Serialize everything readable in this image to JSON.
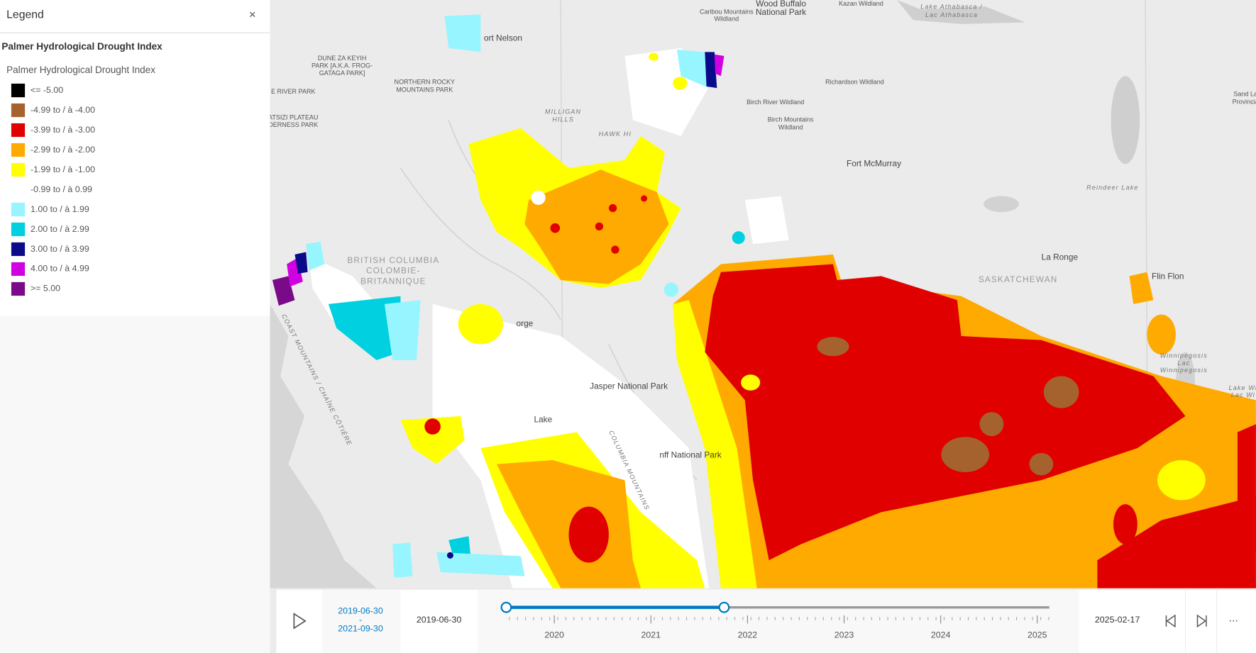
{
  "legend": {
    "header": "Legend",
    "close": "×",
    "layer_title": "Palmer Hydrological Drought Index",
    "sublayer_title": "Palmer Hydrological Drought Index",
    "items": [
      {
        "label": "<= -5.00",
        "color": "#000000"
      },
      {
        "label": "-4.99 to / à -4.00",
        "color": "#a5622f"
      },
      {
        "label": "-3.99 to / à -3.00",
        "color": "#e00000"
      },
      {
        "label": "-2.99 to / à -2.00",
        "color": "#ffaa00"
      },
      {
        "label": "-1.99 to / à -1.00",
        "color": "#ffff00"
      },
      {
        "label": "-0.99 to / à 0.99",
        "color": "#ffffff"
      },
      {
        "label": "1.00 to / à 1.99",
        "color": "#97f5ff"
      },
      {
        "label": "2.00 to / à 2.99",
        "color": "#00d0e0"
      },
      {
        "label": "3.00 to / à 3.99",
        "color": "#0a0a8a"
      },
      {
        "label": "4.00 to / à 4.99",
        "color": "#d000e0"
      },
      {
        "label": ">= 5.00",
        "color": "#7a0a8a"
      }
    ]
  },
  "map_labels": [
    {
      "lines": [
        "Caribou Mountains",
        "Wildland"
      ]
    },
    {
      "lines": [
        "Wood Buffalo",
        "National Park"
      ]
    },
    {
      "lines": [
        "Kazan Wildland"
      ]
    },
    {
      "lines": [
        "Lake Athabasca /",
        "Lac Athabasca"
      ]
    },
    {
      "lines": [
        "DUNE ZA KEYIH",
        "PARK [A.K.A. FROG-",
        "GATAGA PARK]"
      ]
    },
    {
      "lines": [
        "NORTHERN ROCKY",
        "MOUNTAINS PARK"
      ]
    },
    {
      "lines": [
        "E RIVER PARK"
      ]
    },
    {
      "lines": [
        "ATSIZI PLATEAU",
        "DERNESS PARK"
      ]
    },
    {
      "lines": [
        "MILLIGAN",
        "HILLS"
      ]
    },
    {
      "lines": [
        "HAWK HI"
      ]
    },
    {
      "lines": [
        "Richardson Wildland"
      ]
    },
    {
      "lines": [
        "Birch River Wildland"
      ]
    },
    {
      "lines": [
        "Birch Mountains",
        "Wildland"
      ]
    },
    {
      "lines": [
        "Fort McMurray"
      ]
    },
    {
      "lines": [
        "Sand La",
        "Provincia"
      ]
    },
    {
      "lines": [
        "Reindeer Lake"
      ]
    },
    {
      "lines": [
        "La Ronge"
      ]
    },
    {
      "lines": [
        "SASKATCHEWAN"
      ]
    },
    {
      "lines": [
        "Flin Flon"
      ]
    },
    {
      "lines": [
        "ort Nelson"
      ]
    },
    {
      "lines": [
        "BRITISH COLUMBIA",
        "COLOMBIE-",
        "BRITANNIQUE"
      ]
    },
    {
      "lines": [
        "orge"
      ]
    },
    {
      "lines": [
        "Jasper National Park"
      ]
    },
    {
      "lines": [
        "Lake"
      ]
    },
    {
      "lines": [
        "nff National Park"
      ]
    },
    {
      "lines": [
        "Winnipegosis",
        "Lac",
        "Winnipegosis"
      ]
    },
    {
      "lines": [
        "Lake Wi",
        "Lac Wi"
      ]
    },
    {
      "lines": [
        "COAST MOUNTAINS / CHAÎNE CÔTIÈRE"
      ]
    },
    {
      "lines": [
        "COLUMBIA MOUNTAINS"
      ]
    }
  ],
  "time_slider": {
    "extent_start": "2019-06-30",
    "extent_separator": "-",
    "extent_end": "2021-09-30",
    "min_date": "2019-06-30",
    "max_date": "2025-02-17",
    "years": [
      "2020",
      "2021",
      "2022",
      "2023",
      "2024",
      "2025"
    ],
    "more": "..."
  }
}
